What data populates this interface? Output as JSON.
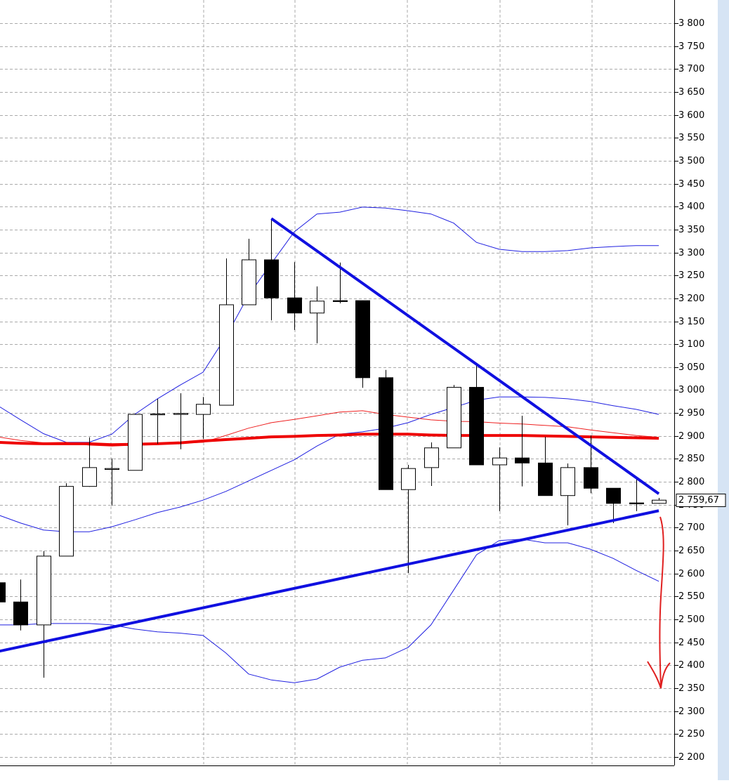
{
  "chart_data": {
    "type": "candlestick",
    "categories": [
      null,
      null,
      null,
      null,
      null,
      null,
      null,
      null,
      null,
      null,
      null,
      null,
      null,
      null,
      null,
      null,
      null,
      null,
      null,
      null,
      null,
      null,
      null,
      null,
      null,
      null,
      null,
      null,
      null,
      null
    ],
    "open": [
      2580,
      2538,
      2488,
      2638,
      2790,
      2827,
      2825,
      2946,
      2947,
      2947,
      2967,
      3186,
      3284,
      3201,
      3168,
      3195,
      3195,
      3027,
      2783,
      2831,
      2874,
      3006,
      2837,
      2852,
      2841,
      2770,
      2831,
      2786,
      2754,
      2753
    ],
    "high": [
      2585,
      2587,
      2649,
      2797,
      2897,
      2851,
      2947,
      2981,
      2993,
      2985,
      3287,
      3330,
      3374,
      3279,
      3226,
      3278,
      3195,
      3044,
      2837,
      2886,
      3011,
      3054,
      2875,
      2944,
      2898,
      2840,
      2901,
      2786,
      2806,
      2765
    ],
    "low": [
      2530,
      2476,
      2373,
      2638,
      2789,
      2748,
      2825,
      2883,
      2871,
      2894,
      2967,
      3186,
      3152,
      3131,
      3102,
      3189,
      3005,
      2783,
      2601,
      2791,
      2874,
      2837,
      2736,
      2790,
      2770,
      2705,
      2775,
      2710,
      2736,
      2752
    ],
    "close": [
      2538,
      2488,
      2638,
      2790,
      2831,
      2829,
      2947,
      2948,
      2949,
      2969,
      3186,
      3284,
      3201,
      3168,
      3194,
      3193,
      3027,
      2783,
      2829,
      2874,
      3006,
      2837,
      2852,
      2841,
      2770,
      2831,
      2786,
      2753,
      2752,
      2760
    ],
    "up_color": "#ffffff",
    "down_color": "#000000",
    "overlays": [
      {
        "color": "#2020e0",
        "width": 1,
        "values": [
          2966,
          2935,
          2905,
          2886,
          2886,
          2904,
          2947,
          2981,
          3011,
          3039,
          3116,
          3207,
          3276,
          3345,
          3384,
          3388,
          3399,
          3397,
          3391,
          3384,
          3364,
          3322,
          3307,
          3302,
          3302,
          3304,
          3310,
          3313,
          3315,
          3315
        ]
      },
      {
        "color": "#2020e0",
        "width": 1,
        "values": [
          2728,
          2710,
          2695,
          2691,
          2691,
          2702,
          2717,
          2733,
          2745,
          2760,
          2779,
          2802,
          2825,
          2848,
          2878,
          2904,
          2909,
          2917,
          2929,
          2947,
          2962,
          2978,
          2985,
          2985,
          2984,
          2981,
          2975,
          2966,
          2958,
          2947
        ]
      },
      {
        "color": "#2020e0",
        "width": 1,
        "values": [
          2488,
          2488,
          2491,
          2491,
          2491,
          2488,
          2479,
          2473,
          2470,
          2465,
          2427,
          2381,
          2368,
          2362,
          2370,
          2396,
          2411,
          2416,
          2439,
          2488,
          2564,
          2641,
          2672,
          2675,
          2667,
          2667,
          2653,
          2633,
          2607,
          2583
        ]
      },
      {
        "color": "#ee2020",
        "width": 1,
        "values": [
          2898,
          2890,
          2885,
          2886,
          2880,
          2878,
          2880,
          2881,
          2884,
          2886,
          2901,
          2917,
          2929,
          2936,
          2944,
          2952,
          2955,
          2947,
          2941,
          2935,
          2932,
          2931,
          2928,
          2926,
          2923,
          2920,
          2913,
          2907,
          2901,
          2897
        ]
      },
      {
        "color": "#ee0000",
        "width": 4,
        "values": [
          2886,
          2884,
          2883,
          2883,
          2883,
          2881,
          2882,
          2883,
          2885,
          2889,
          2892,
          2895,
          2898,
          2899,
          2901,
          2902,
          2904,
          2904,
          2904,
          2902,
          2901,
          2901,
          2901,
          2901,
          2900,
          2899,
          2898,
          2897,
          2896,
          2895
        ]
      }
    ],
    "trendlines": [
      {
        "color": "#1010e0",
        "x": [
          12,
          29
        ],
        "y": [
          3374,
          2774
        ]
      },
      {
        "color": "#1010e0",
        "x": [
          0,
          29
        ],
        "y": [
          2430,
          2737
        ]
      }
    ],
    "last_price": {
      "value": 2759.67,
      "label": "2 759,67"
    },
    "ylim": [
      2181.6,
      3850.5
    ],
    "yticks": [
      {
        "value": 2200,
        "label": "2 200"
      },
      {
        "value": 2250,
        "label": "2 250"
      },
      {
        "value": 2300,
        "label": "2 300"
      },
      {
        "value": 2350,
        "label": "2 350"
      },
      {
        "value": 2400,
        "label": "2 400"
      },
      {
        "value": 2450,
        "label": "2 450"
      },
      {
        "value": 2500,
        "label": "2 500"
      },
      {
        "value": 2550,
        "label": "2 550"
      },
      {
        "value": 2600,
        "label": "2 600"
      },
      {
        "value": 2650,
        "label": "2 650"
      },
      {
        "value": 2700,
        "label": "2 700"
      },
      {
        "value": 2750,
        "label": "2 750"
      },
      {
        "value": 2800,
        "label": "2 800"
      },
      {
        "value": 2850,
        "label": "2 850"
      },
      {
        "value": 2900,
        "label": "2 900"
      },
      {
        "value": 2950,
        "label": "2 950"
      },
      {
        "value": 3000,
        "label": "3 000"
      },
      {
        "value": 3050,
        "label": "3 050"
      },
      {
        "value": 3100,
        "label": "3 100"
      },
      {
        "value": 3150,
        "label": "3 150"
      },
      {
        "value": 3200,
        "label": "3 200"
      },
      {
        "value": 3250,
        "label": "3 250"
      },
      {
        "value": 3300,
        "label": "3 300"
      },
      {
        "value": 3350,
        "label": "3 350"
      },
      {
        "value": 3400,
        "label": "3 400"
      },
      {
        "value": 3450,
        "label": "3 450"
      },
      {
        "value": 3500,
        "label": "3 500"
      },
      {
        "value": 3550,
        "label": "3 550"
      },
      {
        "value": 3600,
        "label": "3 600"
      },
      {
        "value": 3650,
        "label": "3 650"
      },
      {
        "value": 3700,
        "label": "3 700"
      },
      {
        "value": 3750,
        "label": "3 750"
      },
      {
        "value": 3800,
        "label": "3 800"
      }
    ],
    "grid": true
  }
}
